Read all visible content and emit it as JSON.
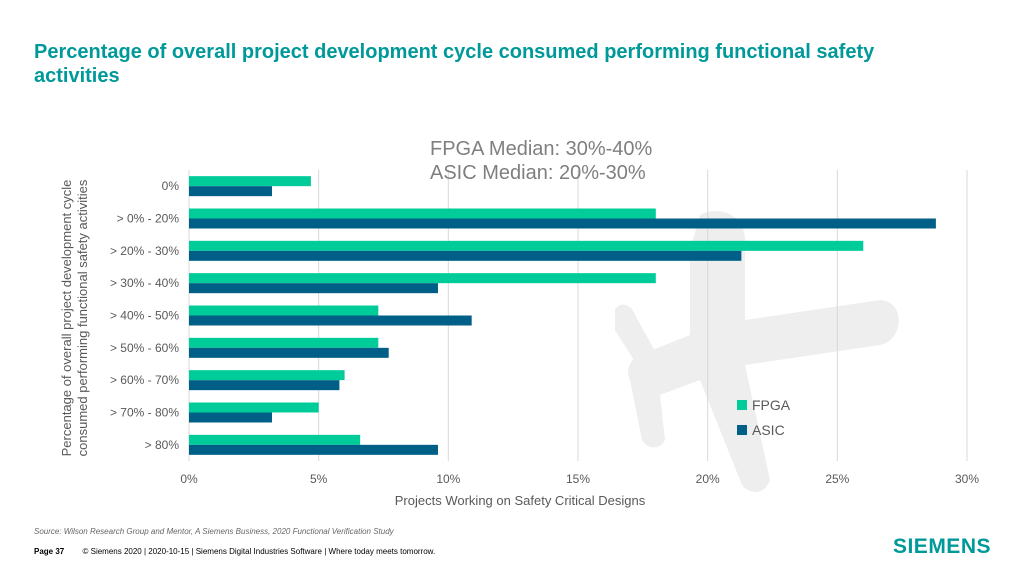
{
  "slide": {
    "title": "Percentage of overall project development cycle consumed performing functional safety activities",
    "source": "Source:  Wilson Research Group and Mentor, A Siemens Business, 2020 Functional Verification Study",
    "page": "Page 37",
    "footer": "© Siemens 2020 | 2020-10-15 | Siemens Digital Industries Software | Where today meets tomorrow.",
    "logo": "SIEMENS"
  },
  "chart_data": {
    "type": "bar",
    "orientation": "horizontal",
    "title": "",
    "annotations": [
      "FPGA Median: 30%-40%",
      "ASIC Median: 20%-30%"
    ],
    "categories": [
      "0%",
      "> 0% - 20%",
      "> 20% - 30%",
      "> 30% - 40%",
      "> 40% - 50%",
      "> 50% - 60%",
      "> 60% - 70%",
      "> 70% - 80%",
      "> 80%"
    ],
    "series": [
      {
        "name": "FPGA",
        "color": "#00CC99",
        "values": [
          4.7,
          18.0,
          26.0,
          18.0,
          7.3,
          7.3,
          6.0,
          5.0,
          6.6
        ]
      },
      {
        "name": "ASIC",
        "color": "#005F86",
        "values": [
          3.2,
          28.8,
          21.3,
          9.6,
          10.9,
          7.7,
          5.8,
          3.2,
          9.6
        ]
      }
    ],
    "xlabel": "Projects Working on Safety Critical Designs",
    "ylabel": "Percentage of overall project development cycle consumed performing functional safety activities",
    "ylabel_lines": [
      "Percentage of overall project development cycle",
      "consumed performing functional safety activities"
    ],
    "xlim": [
      0,
      30
    ],
    "xticks": [
      "0%",
      "5%",
      "10%",
      "15%",
      "20%",
      "25%",
      "30%"
    ],
    "grid": true,
    "legend": "bottom-right"
  }
}
